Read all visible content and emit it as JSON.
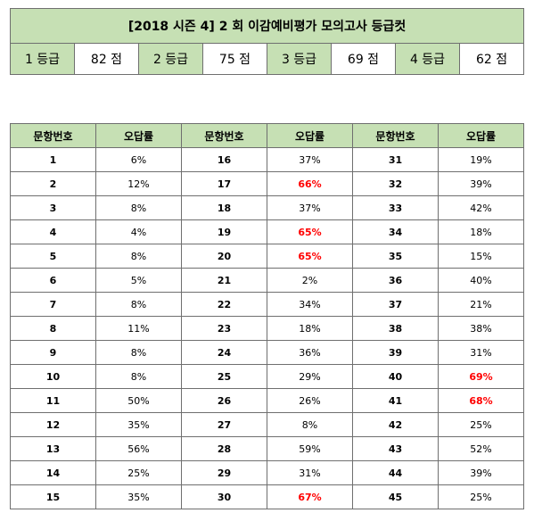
{
  "title": "[2018 시즌 4] 2 회 이감예비평가 모의고사 등급컷",
  "grade_cuts": [
    {
      "grade": "1 등급",
      "score": "82 점"
    },
    {
      "grade": "2 등급",
      "score": "75 점"
    },
    {
      "grade": "3 등급",
      "score": "69 점"
    },
    {
      "grade": "4 등급",
      "score": "62 점"
    }
  ],
  "rate_table": {
    "headers": [
      "문항번호",
      "오답률",
      "문항번호",
      "오답률",
      "문항번호",
      "오답률"
    ],
    "rows": [
      [
        {
          "q": "1",
          "rate": "6%",
          "high": false
        },
        {
          "q": "16",
          "rate": "37%",
          "high": false
        },
        {
          "q": "31",
          "rate": "19%",
          "high": false
        }
      ],
      [
        {
          "q": "2",
          "rate": "12%",
          "high": false
        },
        {
          "q": "17",
          "rate": "66%",
          "high": true
        },
        {
          "q": "32",
          "rate": "39%",
          "high": false
        }
      ],
      [
        {
          "q": "3",
          "rate": "8%",
          "high": false
        },
        {
          "q": "18",
          "rate": "37%",
          "high": false
        },
        {
          "q": "33",
          "rate": "42%",
          "high": false
        }
      ],
      [
        {
          "q": "4",
          "rate": "4%",
          "high": false
        },
        {
          "q": "19",
          "rate": "65%",
          "high": true
        },
        {
          "q": "34",
          "rate": "18%",
          "high": false
        }
      ],
      [
        {
          "q": "5",
          "rate": "8%",
          "high": false
        },
        {
          "q": "20",
          "rate": "65%",
          "high": true
        },
        {
          "q": "35",
          "rate": "15%",
          "high": false
        }
      ],
      [
        {
          "q": "6",
          "rate": "5%",
          "high": false
        },
        {
          "q": "21",
          "rate": "2%",
          "high": false
        },
        {
          "q": "36",
          "rate": "40%",
          "high": false
        }
      ],
      [
        {
          "q": "7",
          "rate": "8%",
          "high": false
        },
        {
          "q": "22",
          "rate": "34%",
          "high": false
        },
        {
          "q": "37",
          "rate": "21%",
          "high": false
        }
      ],
      [
        {
          "q": "8",
          "rate": "11%",
          "high": false
        },
        {
          "q": "23",
          "rate": "18%",
          "high": false
        },
        {
          "q": "38",
          "rate": "38%",
          "high": false
        }
      ],
      [
        {
          "q": "9",
          "rate": "8%",
          "high": false
        },
        {
          "q": "24",
          "rate": "36%",
          "high": false
        },
        {
          "q": "39",
          "rate": "31%",
          "high": false
        }
      ],
      [
        {
          "q": "10",
          "rate": "8%",
          "high": false
        },
        {
          "q": "25",
          "rate": "29%",
          "high": false
        },
        {
          "q": "40",
          "rate": "69%",
          "high": true
        }
      ],
      [
        {
          "q": "11",
          "rate": "50%",
          "high": false
        },
        {
          "q": "26",
          "rate": "26%",
          "high": false
        },
        {
          "q": "41",
          "rate": "68%",
          "high": true
        }
      ],
      [
        {
          "q": "12",
          "rate": "35%",
          "high": false
        },
        {
          "q": "27",
          "rate": "8%",
          "high": false
        },
        {
          "q": "42",
          "rate": "25%",
          "high": false
        }
      ],
      [
        {
          "q": "13",
          "rate": "56%",
          "high": false
        },
        {
          "q": "28",
          "rate": "59%",
          "high": false
        },
        {
          "q": "43",
          "rate": "52%",
          "high": false
        }
      ],
      [
        {
          "q": "14",
          "rate": "25%",
          "high": false
        },
        {
          "q": "29",
          "rate": "31%",
          "high": false
        },
        {
          "q": "44",
          "rate": "39%",
          "high": false
        }
      ],
      [
        {
          "q": "15",
          "rate": "35%",
          "high": false
        },
        {
          "q": "30",
          "rate": "67%",
          "high": true
        },
        {
          "q": "45",
          "rate": "25%",
          "high": false
        }
      ]
    ]
  },
  "colors": {
    "header_fill": "#c6e0b4",
    "highlight_text": "#ff0000",
    "border": "#6f6f6f"
  }
}
